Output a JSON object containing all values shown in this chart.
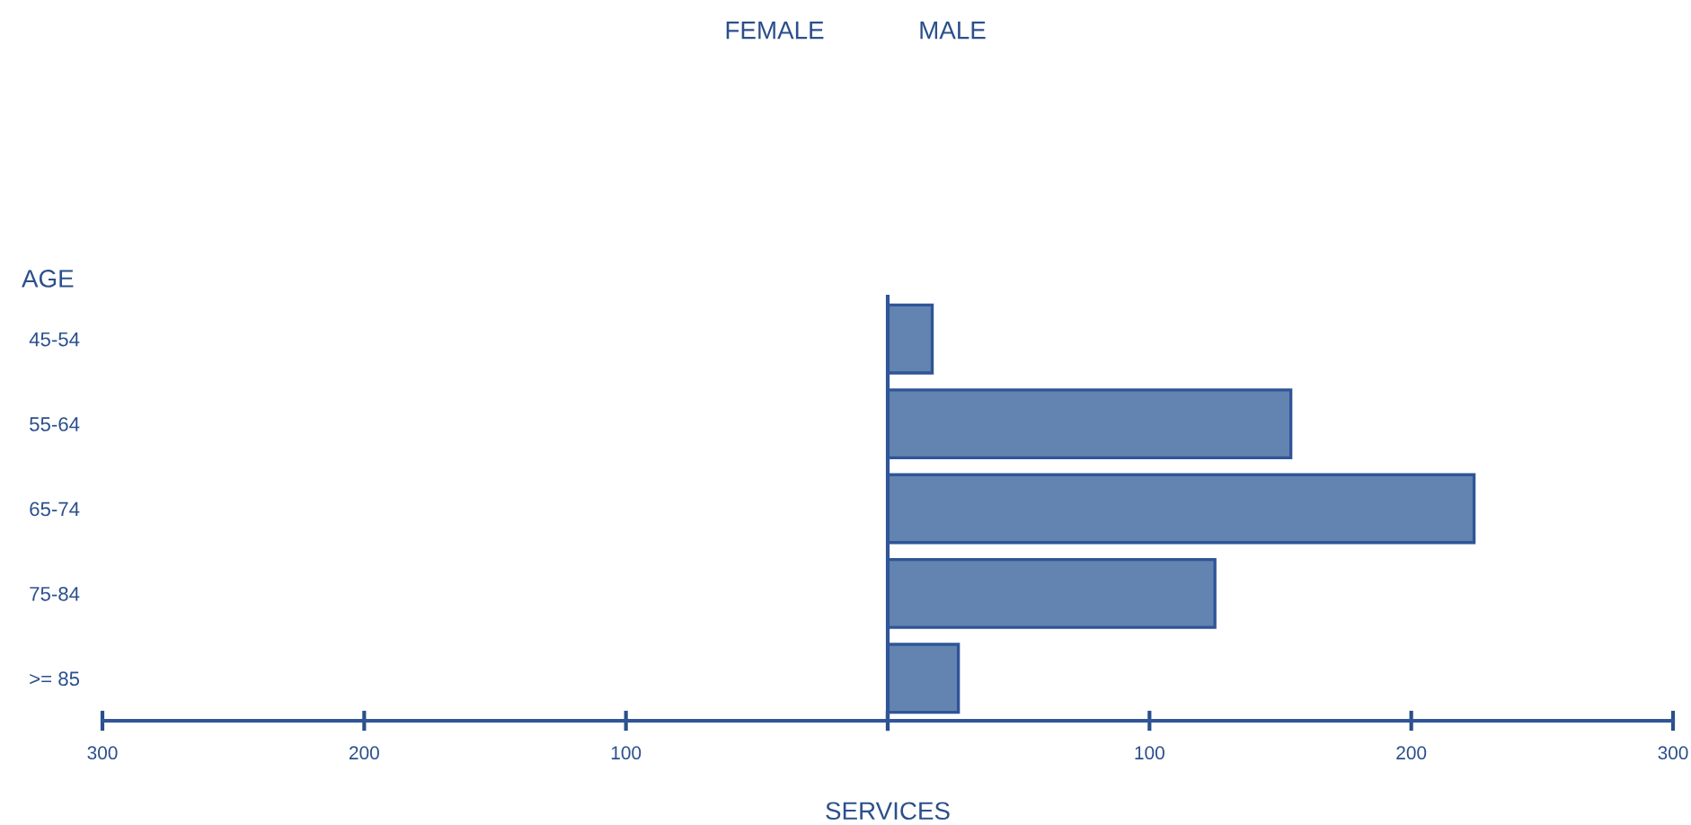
{
  "chart_data": [
    {
      "type": "bar",
      "orientation": "horizontal",
      "title": "FEMALE",
      "xlabel": "SERVICES",
      "ylabel": "AGE",
      "categories": [
        "45-54",
        "55-64",
        "65-74",
        "75-84",
        ">= 85"
      ],
      "series": [
        {
          "color": "#6384b0",
          "values": [
            null,
            null,
            null,
            null,
            null
          ]
        }
      ],
      "xlim": [
        300,
        0
      ],
      "xticks": [
        300,
        200,
        100,
        {
          "value": 0,
          "label": null
        }
      ],
      "grid": false,
      "legend": false
    },
    {
      "type": "bar",
      "orientation": "horizontal",
      "title": "MALE",
      "categories": [
        null,
        null,
        null,
        null,
        null
      ],
      "series": [
        {
          "color": "#6384b0",
          "values": [
            17,
            154,
            224,
            125,
            27
          ]
        }
      ],
      "xlim": [
        0,
        300
      ],
      "xticks": [
        {
          "value": 0,
          "label": null
        },
        100,
        200,
        300
      ],
      "tick_labels": "x",
      "grid": false,
      "legend": false
    }
  ]
}
